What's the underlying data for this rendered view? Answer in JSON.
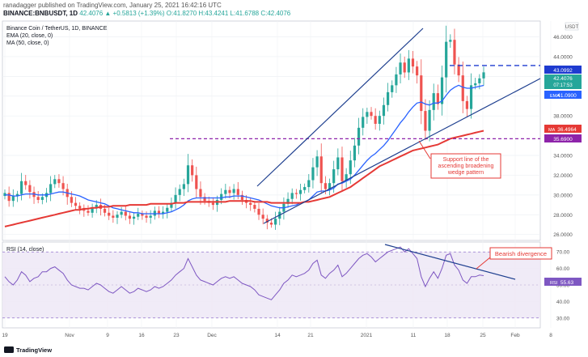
{
  "header": {
    "line1": "ranadagger published on TradingView.com, January 25, 2021 16:42:16 UTC",
    "line2_symbol": "BINANCE:BNBUSDT, 1D",
    "line2_values": "42.4076 ▲ +0.5813 (+1.39%) O:41.8270 H:43.4241 L:41.6788 C:42.4076"
  },
  "legend": {
    "title": "Binance Coin / TetherUS, 1D, BINANCE",
    "ema": "EMA (20, close, 0)",
    "ma": "MA (50, close, 0)"
  },
  "currency_label": "USDT",
  "rsi_label": "RSI (14, close)",
  "annotations": {
    "support_line1": "Support line of the",
    "support_line2": "ascending broadening",
    "support_line3": "wedge pattern",
    "bearish": "Bearish divergence"
  },
  "price_axis": {
    "ticks": [
      "46.0000",
      "44.0000",
      "42.0000",
      "40.0000",
      "38.0000",
      "34.0000",
      "32.0000",
      "30.0000",
      "28.0000",
      "26.0000"
    ],
    "badges": {
      "resistance": "43.0992",
      "price": "42.4076",
      "countdown": "07:17:53",
      "ema_tag": "EMA",
      "ema": "41.0900",
      "ma_tag": "MA",
      "ma": "36.4964",
      "support": "35.6900"
    }
  },
  "rsi_axis": {
    "ticks": [
      "70.00",
      "60.00",
      "50.00",
      "40.00",
      "30.00"
    ],
    "badge_tag": "RSI",
    "badge": "55.63"
  },
  "time_axis": [
    "19",
    "Nov",
    "9",
    "16",
    "23",
    "Dec",
    "14",
    "21",
    "2021",
    "11",
    "18",
    "25",
    "Feb",
    "8"
  ],
  "footer": {
    "logo": "TradingView"
  },
  "colors": {
    "up": "#26a69a",
    "down": "#ef5350",
    "ema": "#2962ff",
    "ma": "#e53935",
    "rsi": "#7e57c2",
    "rsi_band": "#ede7f6",
    "resistance": "#1e3bd0",
    "support": "#8e24aa",
    "trend": "#1e3f8f",
    "annotation": "#e53935"
  },
  "chart_data": [
    {
      "type": "candlestick",
      "title": "Binance Coin / TetherUS, 1D, BINANCE",
      "ylim": [
        25.4,
        47.6
      ],
      "x_ticks": [
        "19",
        "Nov",
        "9",
        "16",
        "23",
        "Dec",
        "14",
        "21",
        "2021",
        "11",
        "18",
        "25",
        "Feb",
        "8"
      ],
      "levels": {
        "resistance": 43.0992,
        "support": 35.69,
        "last_price": 42.4076,
        "ema_20": 41.09,
        "ma_50": 36.4964
      },
      "close": [
        30.2,
        29.4,
        29.9,
        30.1,
        31.4,
        31.0,
        30.3,
        29.8,
        29.5,
        29.8,
        30.2,
        31.1,
        31.6,
        31.2,
        30.6,
        29.8,
        29.2,
        28.9,
        28.6,
        28.4,
        28.2,
        28.7,
        29.0,
        28.6,
        28.2,
        27.9,
        27.7,
        28.0,
        28.3,
        27.9,
        27.6,
        27.8,
        28.1,
        27.9,
        27.7,
        27.9,
        28.4,
        28.1,
        28.3,
        28.7,
        29.2,
        30.0,
        30.6,
        31.1,
        33.0,
        32.0,
        30.6,
        29.8,
        29.4,
        29.2,
        29.0,
        29.5,
        30.1,
        30.5,
        30.2,
        30.6,
        30.0,
        29.5,
        29.2,
        29.0,
        28.6,
        28.0,
        27.6,
        27.2,
        27.0,
        27.6,
        28.3,
        29.1,
        29.6,
        30.2,
        30.1,
        30.5,
        30.8,
        31.5,
        32.8,
        33.9,
        31.2,
        30.6,
        31.2,
        32.6,
        33.8,
        31.4,
        32.1,
        33.5,
        35.0,
        36.8,
        37.9,
        38.4,
        38.0,
        37.2,
        38.0,
        39.1,
        40.4,
        41.1,
        42.2,
        43.4,
        42.4,
        43.8,
        43.0,
        42.1,
        38.5,
        36.5,
        38.6,
        40.3,
        39.2,
        41.9,
        45.5,
        45.7,
        43.2,
        42.1,
        39.5,
        38.7,
        41.1,
        41.3,
        41.8,
        42.41
      ],
      "ema_20": [
        30.0,
        30.0,
        29.9,
        29.9,
        30.0,
        30.1,
        30.1,
        30.1,
        30.0,
        30.0,
        30.0,
        30.1,
        30.2,
        30.3,
        30.3,
        30.2,
        30.1,
        30.0,
        29.9,
        29.7,
        29.5,
        29.4,
        29.3,
        29.2,
        29.1,
        28.9,
        28.7,
        28.6,
        28.5,
        28.4,
        28.3,
        28.2,
        28.2,
        28.1,
        28.1,
        28.1,
        28.1,
        28.1,
        28.1,
        28.2,
        28.3,
        28.5,
        28.7,
        29.0,
        29.4,
        29.6,
        29.7,
        29.7,
        29.7,
        29.7,
        29.7,
        29.7,
        29.7,
        29.8,
        29.8,
        29.9,
        29.9,
        29.9,
        29.8,
        29.7,
        29.6,
        29.5,
        29.3,
        29.1,
        28.9,
        28.8,
        28.7,
        28.7,
        28.8,
        28.9,
        29.0,
        29.2,
        29.3,
        29.5,
        29.9,
        30.3,
        30.4,
        30.4,
        30.5,
        30.7,
        31.1,
        31.2,
        31.4,
        31.6,
        32.0,
        32.5,
        33.0,
        33.5,
        33.9,
        34.2,
        34.6,
        35.0,
        35.5,
        36.1,
        36.7,
        37.3,
        37.8,
        38.4,
        38.9,
        39.3,
        39.4,
        39.2,
        39.1,
        39.3,
        39.3,
        39.5,
        40.1,
        40.6,
        40.9,
        41.1,
        40.9,
        40.8,
        40.8,
        40.9,
        41.0,
        41.09
      ],
      "ma_50": [
        26.8,
        26.9,
        27.0,
        27.1,
        27.2,
        27.3,
        27.4,
        27.5,
        27.6,
        27.7,
        27.8,
        27.9,
        28.0,
        28.1,
        28.2,
        28.3,
        28.4,
        28.5,
        28.5,
        28.6,
        28.6,
        28.7,
        28.7,
        28.8,
        28.8,
        28.8,
        28.9,
        28.9,
        28.9,
        28.9,
        29.0,
        29.0,
        29.0,
        29.0,
        29.0,
        29.1,
        29.1,
        29.1,
        29.1,
        29.1,
        29.1,
        29.2,
        29.2,
        29.2,
        29.3,
        29.3,
        29.3,
        29.3,
        29.3,
        29.3,
        29.3,
        29.3,
        29.3,
        29.3,
        29.4,
        29.4,
        29.4,
        29.4,
        29.4,
        29.4,
        29.3,
        29.3,
        29.3,
        29.3,
        29.2,
        29.2,
        29.2,
        29.2,
        29.2,
        29.2,
        29.2,
        29.2,
        29.3,
        29.3,
        29.4,
        29.5,
        29.6,
        29.7,
        29.8,
        30.0,
        30.2,
        30.4,
        30.6,
        30.8,
        31.1,
        31.4,
        31.7,
        32.0,
        32.3,
        32.6,
        32.9,
        33.1,
        33.3,
        33.5,
        33.7,
        33.9,
        34.1,
        34.3,
        34.5,
        34.6,
        34.7,
        34.8,
        34.9,
        35.0,
        35.1,
        35.3,
        35.5,
        35.7,
        35.8,
        35.9,
        36.0,
        36.1,
        36.2,
        36.3,
        36.4,
        36.4964
      ]
    },
    {
      "type": "line",
      "title": "RSI (14, close)",
      "ylim": [
        24,
        76
      ],
      "bands": [
        30,
        70
      ],
      "values": [
        55,
        52,
        50,
        53,
        58,
        56,
        52,
        54,
        55,
        58,
        58,
        60,
        61,
        59,
        57,
        53,
        50,
        49,
        48,
        48,
        47,
        49,
        51,
        50,
        48,
        46,
        45,
        47,
        49,
        47,
        45,
        46,
        48,
        47,
        46,
        47,
        49,
        48,
        49,
        51,
        53,
        56,
        58,
        60,
        66,
        61,
        56,
        53,
        52,
        51,
        50,
        52,
        54,
        55,
        54,
        55,
        53,
        51,
        50,
        49,
        47,
        44,
        43,
        42,
        41,
        44,
        47,
        51,
        53,
        56,
        55,
        56,
        57,
        59,
        63,
        65,
        56,
        54,
        57,
        59,
        62,
        55,
        57,
        60,
        63,
        66,
        68,
        69,
        67,
        64,
        66,
        68,
        70,
        71,
        72,
        73,
        70,
        72,
        69,
        66,
        55,
        49,
        54,
        58,
        54,
        60,
        68,
        69,
        62,
        59,
        53,
        51,
        55,
        55,
        56,
        55.63
      ]
    }
  ]
}
